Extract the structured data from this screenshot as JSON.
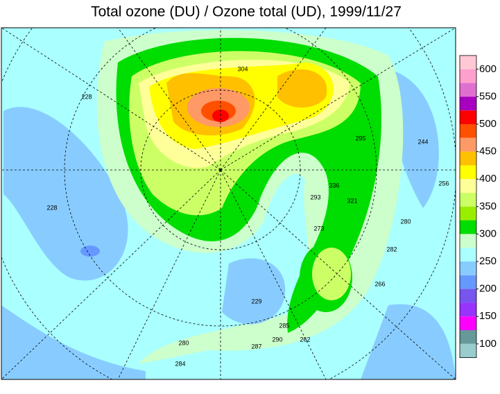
{
  "title": "Total ozone (DU) / Ozone total (UD), 1999/11/27",
  "colorbar": {
    "ticks": [
      600,
      550,
      500,
      450,
      400,
      350,
      300,
      250,
      200,
      150,
      100
    ],
    "colors": [
      "#ffc8d4",
      "#ffa0cc",
      "#e070d0",
      "#a800c0",
      "#ff0000",
      "#ff5000",
      "#ff9966",
      "#ffc000",
      "#ffff00",
      "#ffff99",
      "#ccff66",
      "#99ee00",
      "#00dd00",
      "#ccffcc",
      "#aaffff",
      "#88ccff",
      "#6699ff",
      "#7755ee",
      "#9933ff",
      "#ff00ff",
      "#669999",
      "#99cccc"
    ]
  },
  "map": {
    "contour_labels": [
      "228",
      "228",
      "244",
      "256",
      "280",
      "282",
      "266",
      "295",
      "321",
      "336",
      "293",
      "273",
      "229",
      "285",
      "290",
      "262",
      "287",
      "280",
      "284",
      "304"
    ]
  }
}
